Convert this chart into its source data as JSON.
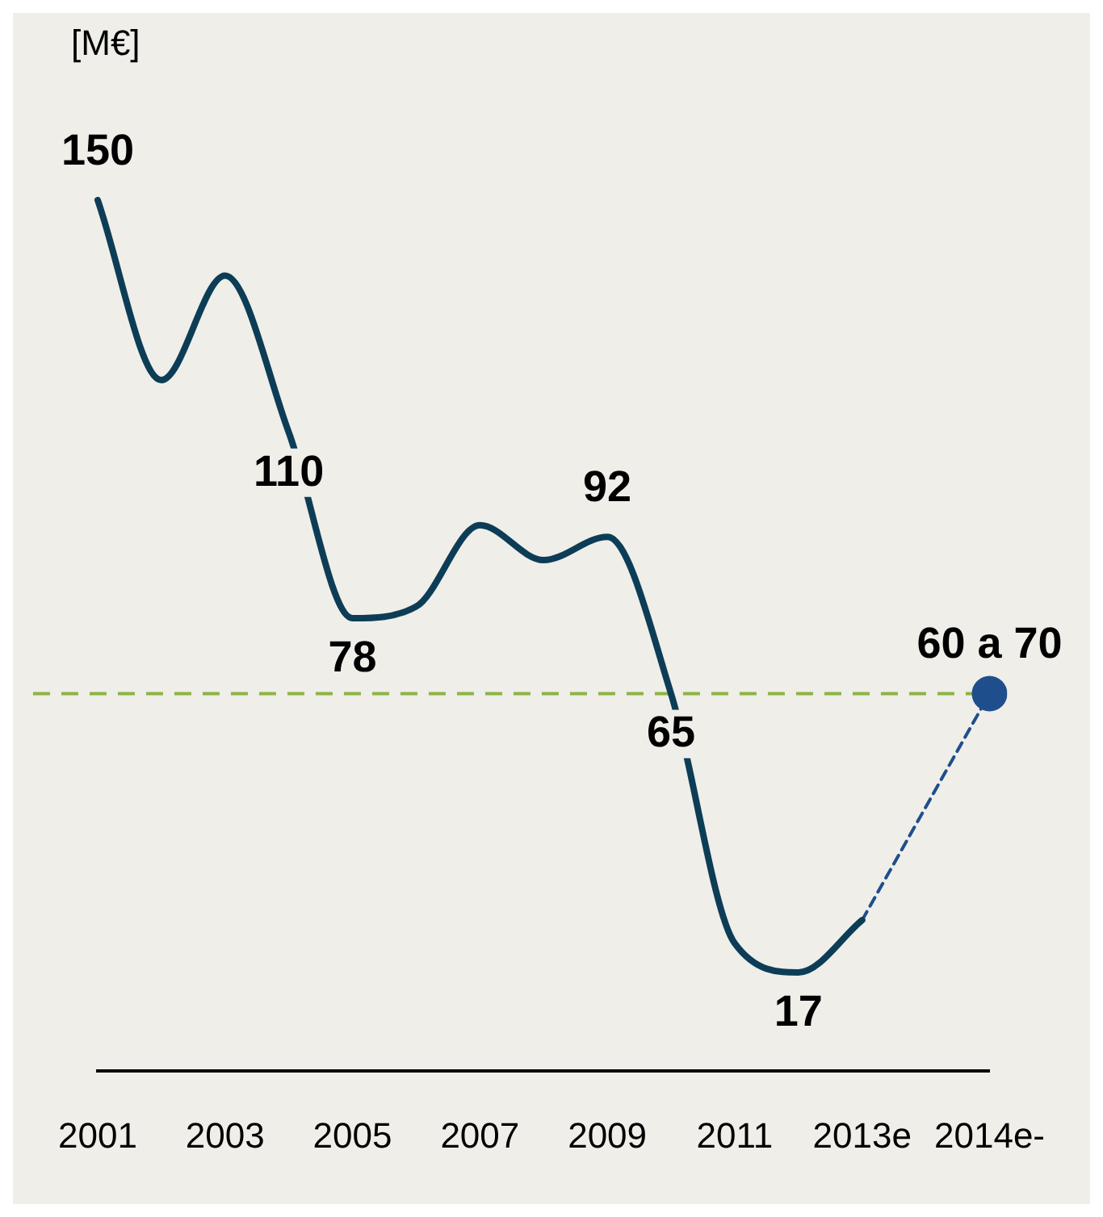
{
  "chart_data": {
    "type": "line",
    "ylabel": "[M€]",
    "categories": [
      "2001",
      null,
      "2003",
      null,
      "2005",
      null,
      "2007",
      null,
      "2009",
      null,
      "2011",
      null,
      "2013e",
      null,
      "2014e-"
    ],
    "series": [
      {
        "color": "#0d3d56",
        "marker": "none",
        "line_style": "solid",
        "values": [
          150,
          119,
          137,
          110,
          78,
          80,
          94,
          88,
          92,
          65,
          22,
          17,
          26,
          null,
          null
        ],
        "value_labels": [
          "150",
          null,
          null,
          "110",
          "78",
          null,
          null,
          null,
          "92",
          "65",
          null,
          "17",
          null,
          null,
          null
        ]
      },
      {
        "color": "#1f4e8c",
        "marker": "none",
        "line_style": "dashed",
        "values": [
          null,
          null,
          null,
          null,
          null,
          null,
          null,
          null,
          null,
          null,
          null,
          null,
          26,
          null,
          65
        ]
      },
      {
        "type": "scatter",
        "color": "#1f4e8c",
        "marker": "circle",
        "values": [
          null,
          null,
          null,
          null,
          null,
          null,
          null,
          null,
          null,
          null,
          null,
          null,
          null,
          null,
          65
        ],
        "value_labels": [
          null,
          null,
          null,
          null,
          null,
          null,
          null,
          null,
          null,
          null,
          null,
          null,
          null,
          null,
          "60 a 70"
        ]
      }
    ],
    "ref_lines": [
      {
        "axis": "y",
        "value": 65,
        "color": "#8db441",
        "line_style": "dashed"
      }
    ],
    "grid": false,
    "legend": false
  }
}
